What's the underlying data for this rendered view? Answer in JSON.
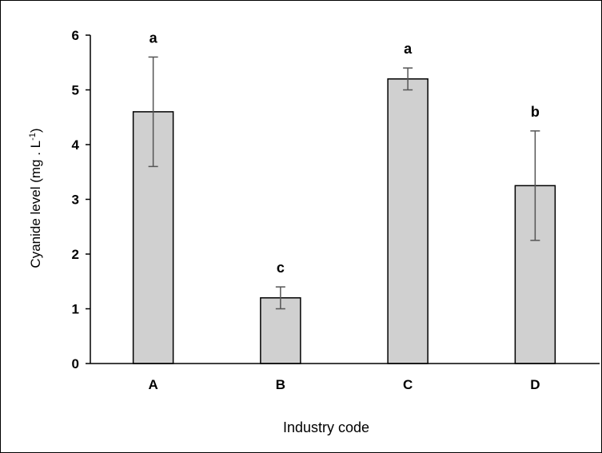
{
  "chart_data": {
    "type": "bar",
    "categories": [
      "A",
      "B",
      "C",
      "D"
    ],
    "values": [
      4.6,
      1.2,
      5.2,
      3.25
    ],
    "error": [
      1.0,
      0.2,
      0.2,
      1.0
    ],
    "significance_letters": [
      "a",
      "c",
      "a",
      "b"
    ],
    "xlabel": "Industry code",
    "ylabel_main": "Cyanide level (mg . L",
    "ylabel_sup": "-1",
    "ylabel_end": ")",
    "ylim": [
      0,
      6
    ],
    "yticks": [
      "0",
      "1",
      "2",
      "3",
      "4",
      "5",
      "6"
    ],
    "grid": false,
    "legend": false,
    "bar_color": "#d0d0d0",
    "bar_edge_color": "#000000",
    "errorbar_color": "#555555"
  }
}
